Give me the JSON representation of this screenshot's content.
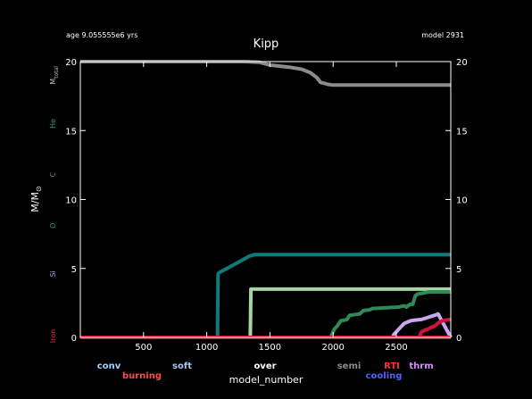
{
  "header": {
    "age_text": "age 9.055555e6 yrs",
    "model_text": "model 2931",
    "title": "Kipp"
  },
  "chart_data": {
    "type": "line",
    "title": "Kipp",
    "xlabel": "model_number",
    "ylabel": "M/M",
    "ylabel_sub": "⊙",
    "xlim": [
      0,
      2931
    ],
    "ylim": [
      0,
      20
    ],
    "x_ticks": [
      500,
      1000,
      1500,
      2000,
      2500
    ],
    "y_ticks": [
      0,
      5,
      10,
      15,
      20
    ],
    "grid": false,
    "left_labels": [
      {
        "text": "M",
        "sub": "total",
        "y": 19.0,
        "color": "#bdbdbd"
      },
      {
        "text": "He",
        "y": 15.5,
        "color": "#2a9d8f"
      },
      {
        "text": "C",
        "y": 11.8,
        "color": "#2e9b4f"
      },
      {
        "text": "O",
        "y": 8.1,
        "color": "#2e9b4f"
      },
      {
        "text": "Si",
        "y": 4.6,
        "color": "#b18fe8"
      },
      {
        "text": "Iron",
        "y": 0.1,
        "color": "#e0304a"
      }
    ],
    "series": [
      {
        "key": "total",
        "color": "#8c8c8c",
        "x": [
          0,
          1300,
          1420,
          1500,
          1650,
          1750,
          1820,
          1870,
          1900,
          1960,
          2000,
          2931
        ],
        "y": [
          20.0,
          20.0,
          19.95,
          19.75,
          19.6,
          19.45,
          19.2,
          18.85,
          18.5,
          18.35,
          18.3,
          18.3
        ]
      },
      {
        "key": "he_core",
        "color": "#0f7a78",
        "x": [
          1085,
          1090,
          1100,
          1120,
          1160,
          1220,
          1280,
          1340,
          1380,
          2931
        ],
        "y": [
          0.0,
          4.6,
          4.7,
          4.8,
          5.0,
          5.3,
          5.6,
          5.9,
          6.0,
          6.0
        ]
      },
      {
        "key": "c_core",
        "color": "#a5d6a0",
        "x": [
          1345,
          1350,
          1360,
          2931
        ],
        "y": [
          0.0,
          3.5,
          3.5,
          3.5
        ]
      },
      {
        "key": "o_core",
        "color": "#2e8b57",
        "x": [
          1980,
          2010,
          2040,
          2060,
          2110,
          2130,
          2210,
          2240,
          2290,
          2310,
          2520,
          2560,
          2580,
          2610,
          2630,
          2650,
          2670,
          2700,
          2760,
          2931
        ],
        "y": [
          0.0,
          0.6,
          0.9,
          1.2,
          1.3,
          1.6,
          1.7,
          1.95,
          2.0,
          2.1,
          2.2,
          2.3,
          2.2,
          2.4,
          2.4,
          3.0,
          3.15,
          3.2,
          3.3,
          3.3
        ]
      },
      {
        "key": "si_core",
        "color": "#c7a6f2",
        "x": [
          2470,
          2480,
          2520,
          2560,
          2610,
          2640,
          2700,
          2750,
          2800,
          2820,
          2831,
          2931
        ],
        "y": [
          0.0,
          0.2,
          0.6,
          1.0,
          1.2,
          1.25,
          1.3,
          1.45,
          1.6,
          1.65,
          1.7,
          0.0
        ]
      },
      {
        "key": "fe_core",
        "color": "#d1143c",
        "x": [
          2680,
          2700,
          2720,
          2750,
          2780,
          2800,
          2840,
          2880,
          2931
        ],
        "y": [
          0.0,
          0.4,
          0.5,
          0.6,
          0.75,
          0.8,
          1.1,
          1.25,
          1.3
        ]
      },
      {
        "key": "iron_base",
        "color": "#c8102e",
        "x": [
          0,
          2931
        ],
        "y": [
          0.0,
          0.0
        ]
      }
    ]
  },
  "legend": [
    {
      "label": "conv",
      "color": "#9fd3ff"
    },
    {
      "label": "burning",
      "color": "#ff4a4a"
    },
    {
      "label": "soft",
      "color": "#a9c4f0"
    },
    {
      "label": "over",
      "color": "#ffffff"
    },
    {
      "label": "semi",
      "color": "#8c8c8c"
    },
    {
      "label": "RTI",
      "color": "#ff3030"
    },
    {
      "label": "cooling",
      "color": "#4a63ff"
    },
    {
      "label": "thrm",
      "color": "#d48cff"
    }
  ]
}
